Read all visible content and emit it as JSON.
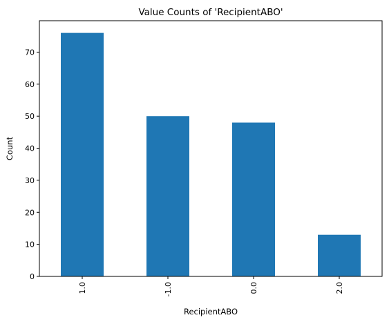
{
  "chart_data": {
    "type": "bar",
    "title": "Value Counts of 'RecipientABO'",
    "xlabel": "RecipientABO",
    "ylabel": "Count",
    "categories": [
      "1.0",
      "-1.0",
      "0.0",
      "2.0"
    ],
    "values": [
      76,
      50,
      48,
      13
    ],
    "ylim": [
      0,
      79.8
    ],
    "yticks": [
      0,
      10,
      20,
      30,
      40,
      50,
      60,
      70
    ],
    "grid": false,
    "bar_color": "#1f77b4"
  }
}
